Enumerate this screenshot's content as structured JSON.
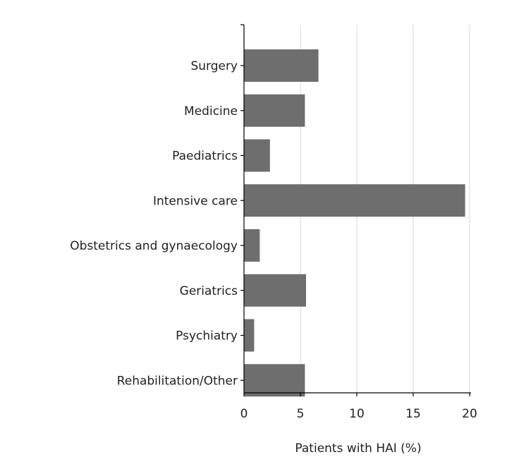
{
  "chart_data": {
    "type": "bar",
    "orientation": "horizontal",
    "categories": [
      "Surgery",
      "Medicine",
      "Paediatrics",
      "Intensive care",
      "Obstetrics and gynaecology",
      "Geriatrics",
      "Psychiatry",
      "Rehabilitation/Other"
    ],
    "values": [
      6.6,
      5.4,
      2.3,
      19.6,
      1.4,
      5.5,
      0.9,
      5.4
    ],
    "xlabel": "Patients with HAI (%)",
    "ylabel": "",
    "title": "",
    "xlim": [
      0,
      20
    ],
    "xticks": [
      0,
      5,
      10,
      15,
      20
    ],
    "grid": "vertical",
    "bar_color": "#6e6e6e",
    "grid_color": "#d9d9d9",
    "axis_color": "#000000"
  }
}
